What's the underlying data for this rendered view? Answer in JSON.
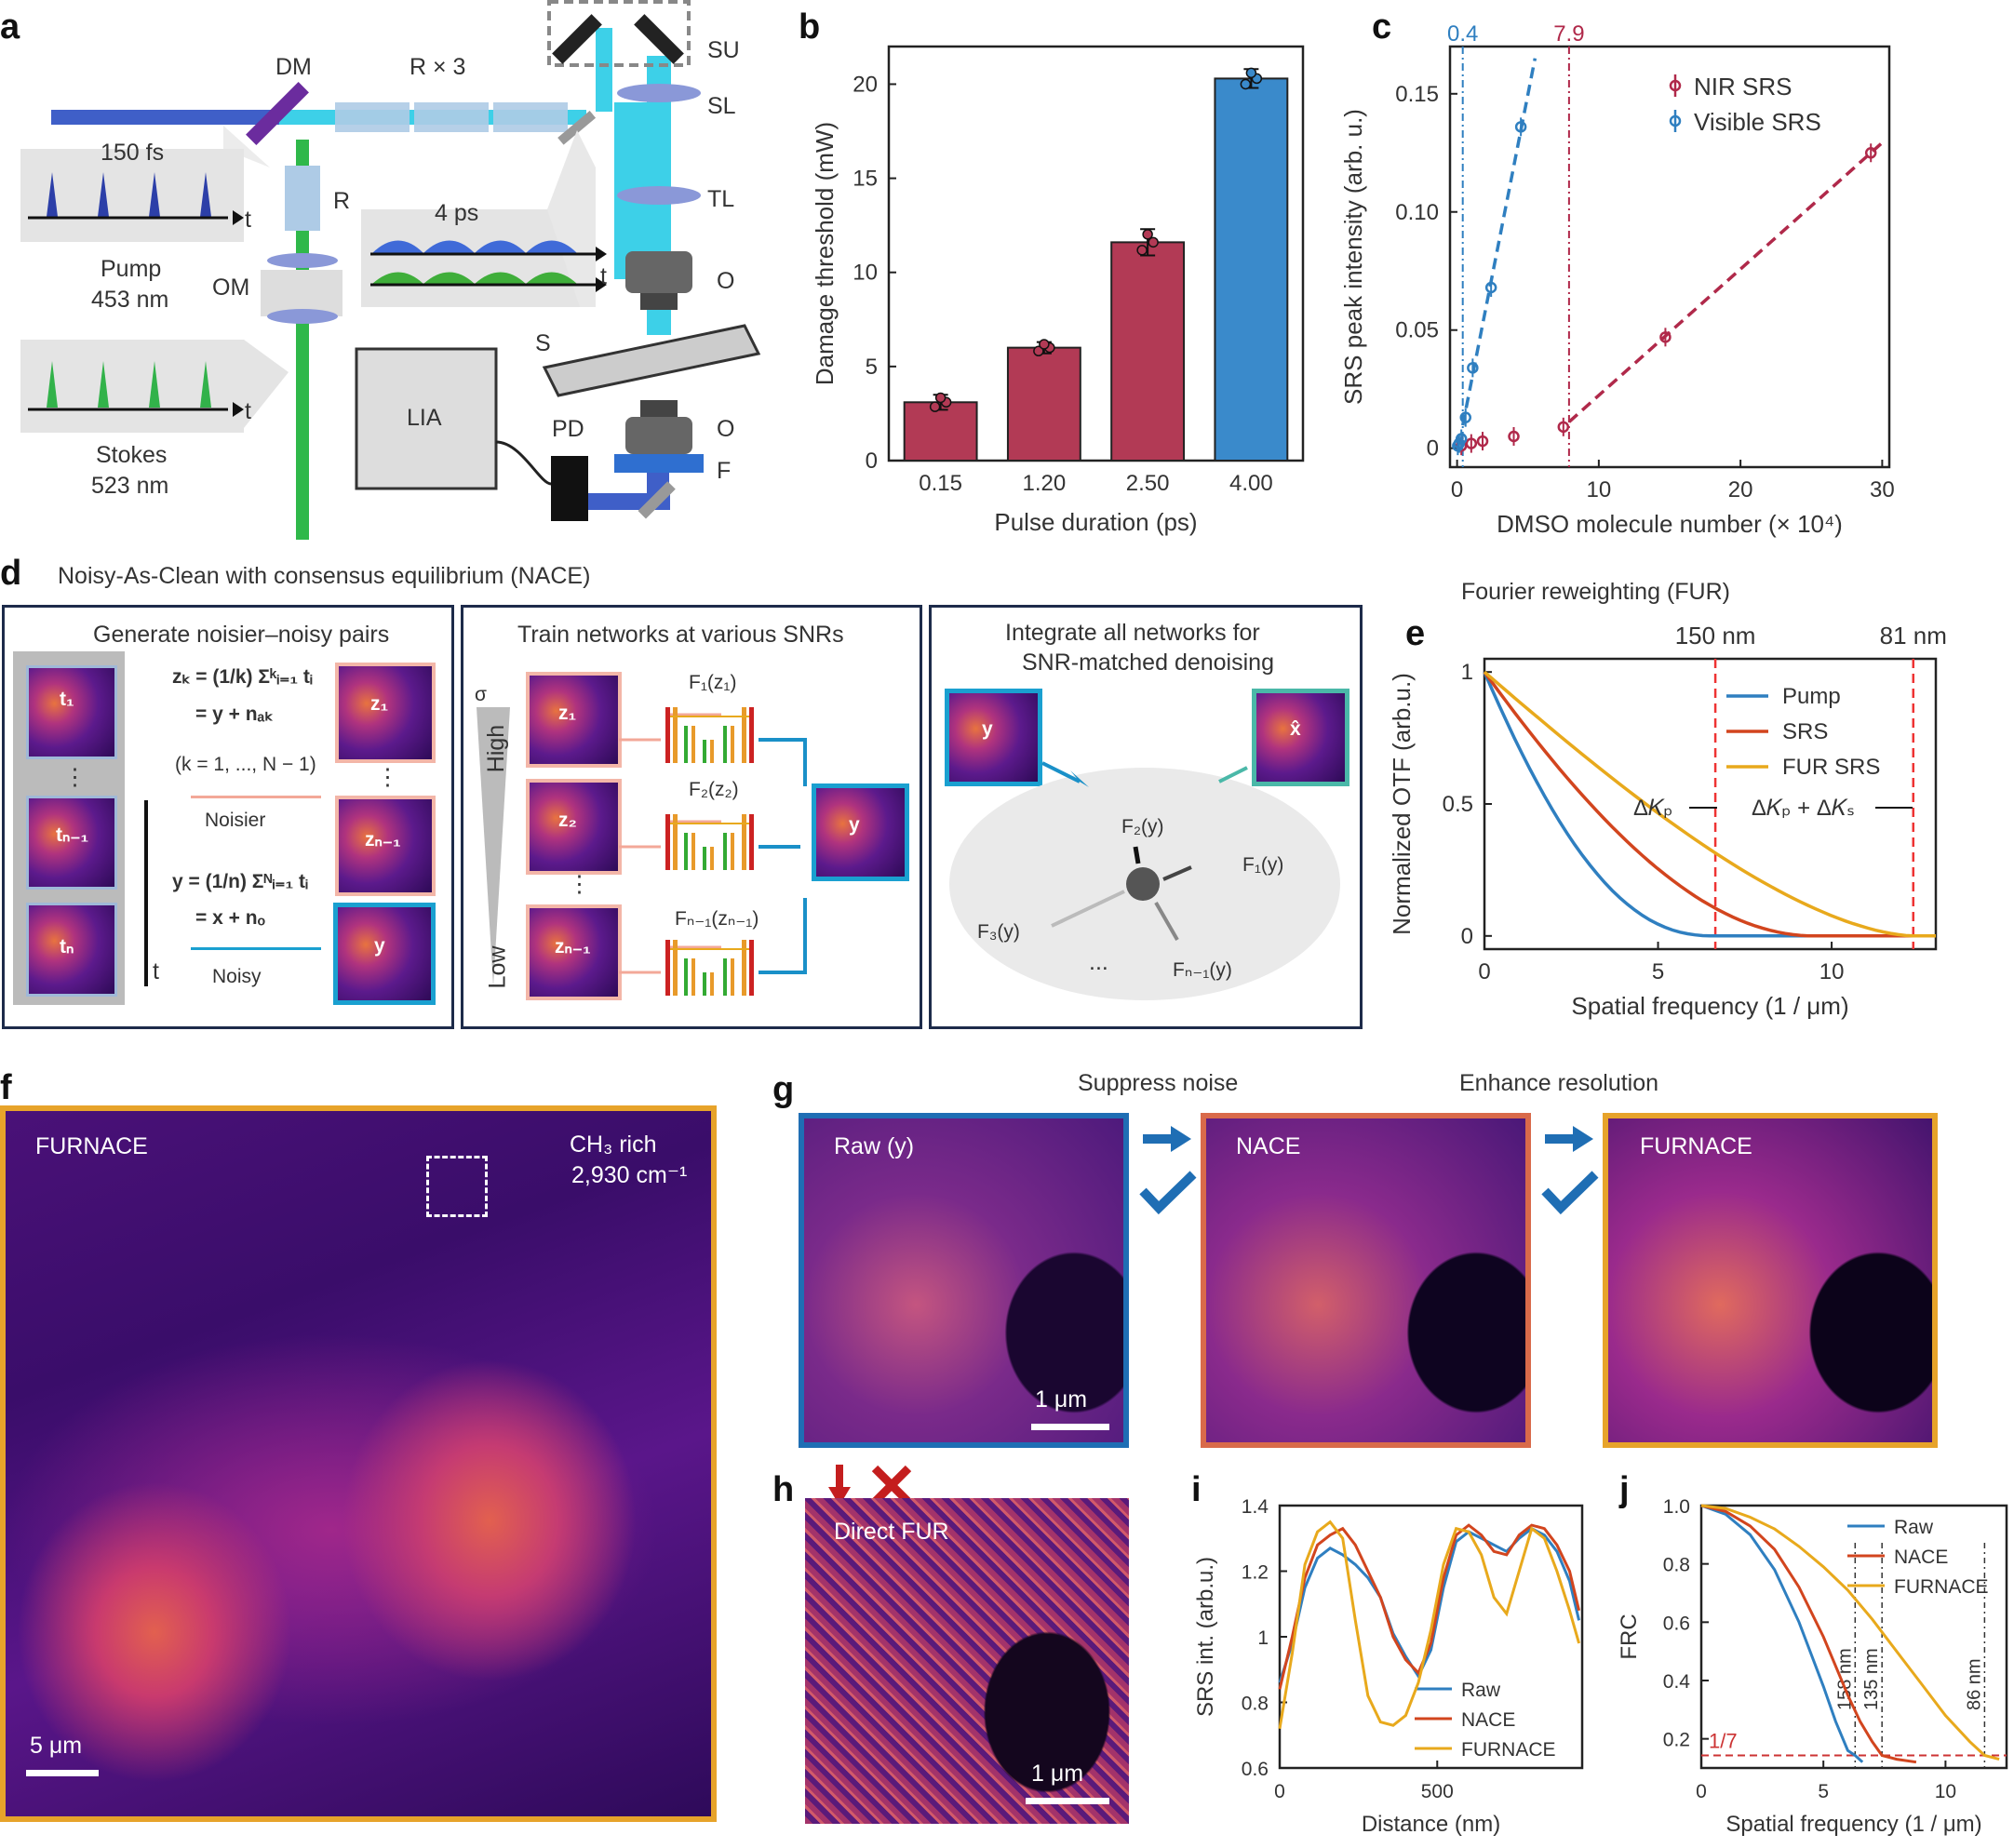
{
  "panels": {
    "a": {
      "label": "a",
      "texts": {
        "dm": "DM",
        "r3": "R × 3",
        "su": "SU",
        "sl": "SL",
        "tl": "TL",
        "o1": "O",
        "o2": "O",
        "s": "S",
        "f": "F",
        "pd": "PD",
        "lia": "LIA",
        "r": "R",
        "om": "OM",
        "fs": "150 fs",
        "ps": "4 ps",
        "t1": "t",
        "t2": "t",
        "t3": "t",
        "pump": "Pump",
        "pump_nm": "453 nm",
        "stokes": "Stokes",
        "stokes_nm": "523 nm"
      }
    },
    "b": {
      "label": "b"
    },
    "c": {
      "label": "c"
    },
    "d": {
      "label": "d",
      "title": "Noisy-As-Clean with consensus equilibrium (NACE)",
      "box1_title": "Generate noisier–noisy pairs",
      "box2_title": "Train networks at various SNRs",
      "box3_title_1": "Integrate all networks for",
      "box3_title_2": "SNR-matched denoising",
      "noisier": "Noisier",
      "noisy": "Noisy",
      "k_range": "(k = 1, ..., N − 1)",
      "eq_zk": "z",
      "high": "High",
      "low": "Low",
      "sigma": "σ",
      "t": "t",
      "dots": "⋮",
      "f1": "F₁(z₁)",
      "f2": "F₂(z₂)",
      "fn": "Fₙ₋₁(zₙ₋₁)",
      "g_f2": "F₂(y)",
      "g_f1": "F₁(y)",
      "g_f3": "F₃(y)",
      "g_fn": "Fₙ₋₁(y)",
      "hdots": "...",
      "y": "y",
      "xhat": "x̂",
      "z1": "z₁",
      "z2": "z₂",
      "zn": "zₙ₋₁",
      "t1": "t₁",
      "tn1": "tₙ₋₁",
      "tn": "tₙ",
      "eq1a": "zₖ = (1/k) Σᵏᵢ₌₁ tᵢ",
      "eq1b": "= y + nₐₖ",
      "eq2a": "y = (1/n) Σᴺᵢ₌₁ tᵢ",
      "eq2b": "= x + nₒ"
    },
    "e": {
      "label": "e",
      "title": "Fourier reweighting (FUR)"
    },
    "f": {
      "label": "f",
      "name": "FURNACE",
      "band": "CH₃ rich",
      "wn": "2,930 cm⁻¹",
      "scale": "5 μm"
    },
    "g": {
      "label": "g",
      "suppress": "Suppress noise",
      "enhance": "Enhance resolution",
      "raw": "Raw (y)",
      "nace": "NACE",
      "furnace": "FURNACE",
      "scale": "1 μm"
    },
    "h": {
      "label": "h",
      "name": "Direct FUR",
      "scale": "1 μm"
    },
    "i": {
      "label": "i"
    },
    "j": {
      "label": "j"
    }
  },
  "chart_data": [
    {
      "id": "b",
      "type": "bar",
      "xlabel": "Pulse duration (ps)",
      "ylabel": "Damage threshold (mW)",
      "categories": [
        "0.15",
        "1.20",
        "2.50",
        "4.00"
      ],
      "values": [
        3.1,
        6.0,
        11.6,
        20.3
      ],
      "errors": [
        0.4,
        0.3,
        0.7,
        0.5
      ],
      "colors": [
        "#b23a55",
        "#b23a55",
        "#b23a55",
        "#3a8acb"
      ],
      "ylim": [
        0,
        22
      ],
      "yticks": [
        0,
        5,
        10,
        15,
        20
      ]
    },
    {
      "id": "c",
      "type": "scatter",
      "xlabel": "DMSO molecule number (× 10⁴)",
      "ylabel": "SRS peak intensity (arb. u.)",
      "xlim": [
        -0.5,
        30.5
      ],
      "ylim": [
        -0.008,
        0.17
      ],
      "xticks": [
        0,
        10,
        20,
        30
      ],
      "yticks": [
        0,
        0.05,
        0.1,
        0.15
      ],
      "ytick_labels": [
        "0",
        "0.05",
        "0.10",
        "0.15"
      ],
      "vlines": [
        {
          "x": 0.4,
          "label": "0.4",
          "color": "#2f7fc0"
        },
        {
          "x": 7.9,
          "label": "7.9",
          "color": "#b0294a"
        }
      ],
      "series": [
        {
          "name": "NIR SRS",
          "color": "#b0294a",
          "x": [
            0.3,
            1.0,
            1.8,
            4.0,
            7.5,
            14.7,
            29.2
          ],
          "y": [
            0.001,
            0.002,
            0.003,
            0.005,
            0.009,
            0.047,
            0.125
          ]
        },
        {
          "name": "Visible SRS",
          "color": "#2f7fc0",
          "x": [
            0.05,
            0.15,
            0.3,
            0.6,
            1.1,
            2.4,
            4.5
          ],
          "y": [
            0.001,
            0.002,
            0.004,
            0.013,
            0.034,
            0.068,
            0.136
          ]
        }
      ]
    },
    {
      "id": "e",
      "type": "line",
      "xlabel": "Spatial frequency (1 / μm)",
      "ylabel": "Normalized OTF (arb.u.)",
      "xlim": [
        0,
        13
      ],
      "ylim": [
        -0.05,
        1.05
      ],
      "xticks": [
        0,
        5,
        10
      ],
      "yticks": [
        0,
        0.5,
        1
      ],
      "vlines": [
        {
          "x": 6.65,
          "label": "150 nm",
          "annot": "ΔK_P"
        },
        {
          "x": 12.35,
          "label": "81 nm",
          "annot": "ΔK_P + ΔK_S"
        }
      ],
      "annot_p": "Δ𝐾ₚ",
      "annot_ps": "Δ𝐾ₚ + Δ𝐾ₛ",
      "series": [
        {
          "name": "Pump",
          "color": "#2f7fc0",
          "cutoff": 6.65
        },
        {
          "name": "SRS",
          "color": "#d2451e",
          "cutoff": 9.5
        },
        {
          "name": "FUR SRS",
          "color": "#e8a91c",
          "cutoff": 12.35
        }
      ]
    },
    {
      "id": "i",
      "type": "line",
      "xlabel": "Distance (nm)",
      "ylabel": "SRS int. (arb.u.)",
      "xlim": [
        0,
        960
      ],
      "ylim": [
        0.6,
        1.4
      ],
      "xticks": [
        0,
        500
      ],
      "yticks": [
        0.6,
        0.8,
        1,
        1.2,
        1.4
      ],
      "ytick_labels": [
        "0.6",
        "0.8",
        "1",
        "1.2",
        "1.4"
      ],
      "series": [
        {
          "name": "Raw",
          "color": "#2f7fc0",
          "x": [
            0,
            40,
            80,
            120,
            160,
            200,
            240,
            280,
            320,
            360,
            400,
            440,
            480,
            520,
            560,
            600,
            640,
            680,
            720,
            760,
            800,
            840,
            880,
            920,
            950
          ],
          "y": [
            0.86,
            0.98,
            1.15,
            1.24,
            1.27,
            1.25,
            1.22,
            1.18,
            1.12,
            1.01,
            0.94,
            0.88,
            0.96,
            1.15,
            1.29,
            1.32,
            1.3,
            1.28,
            1.26,
            1.3,
            1.33,
            1.31,
            1.26,
            1.17,
            1.05
          ]
        },
        {
          "name": "NACE",
          "color": "#d2451e",
          "x": [
            0,
            40,
            80,
            120,
            160,
            200,
            240,
            280,
            320,
            360,
            400,
            440,
            480,
            520,
            560,
            600,
            640,
            680,
            720,
            760,
            800,
            840,
            880,
            920,
            950
          ],
          "y": [
            0.84,
            1.0,
            1.18,
            1.28,
            1.31,
            1.33,
            1.28,
            1.2,
            1.12,
            1.0,
            0.93,
            0.89,
            0.98,
            1.18,
            1.31,
            1.34,
            1.31,
            1.26,
            1.25,
            1.31,
            1.34,
            1.33,
            1.28,
            1.2,
            1.08
          ]
        },
        {
          "name": "FURNACE",
          "color": "#e8a91c",
          "x": [
            0,
            40,
            80,
            120,
            160,
            200,
            240,
            280,
            320,
            360,
            400,
            440,
            480,
            520,
            560,
            600,
            640,
            680,
            720,
            760,
            800,
            840,
            880,
            920,
            950
          ],
          "y": [
            0.72,
            0.95,
            1.22,
            1.32,
            1.35,
            1.3,
            1.05,
            0.82,
            0.74,
            0.73,
            0.76,
            0.86,
            1.02,
            1.22,
            1.33,
            1.32,
            1.25,
            1.12,
            1.07,
            1.2,
            1.33,
            1.3,
            1.2,
            1.08,
            0.98
          ]
        }
      ]
    },
    {
      "id": "j",
      "type": "line",
      "xlabel": "Spatial frequency  (1 / μm)",
      "ylabel": "FRC",
      "xlim": [
        0,
        12.5
      ],
      "ylim": [
        0.1,
        1.0
      ],
      "xticks": [
        0,
        5,
        10
      ],
      "yticks": [
        0.2,
        0.4,
        0.6,
        0.8,
        1.0
      ],
      "ytick_labels": [
        "0.2",
        "0.4",
        "0.6",
        "0.8",
        "1.0"
      ],
      "hline": {
        "y": 0.143,
        "label": "1/7"
      },
      "vlines": [
        {
          "x": 6.3,
          "label": "158 nm"
        },
        {
          "x": 7.4,
          "label": "135 nm"
        },
        {
          "x": 11.6,
          "label": "86 nm"
        }
      ],
      "series": [
        {
          "name": "Raw",
          "color": "#2f7fc0",
          "x": [
            0,
            1,
            2,
            3,
            4,
            5,
            5.5,
            6,
            6.3,
            6.6
          ],
          "y": [
            1.0,
            0.97,
            0.9,
            0.78,
            0.6,
            0.38,
            0.26,
            0.16,
            0.143,
            0.12
          ]
        },
        {
          "name": "NACE",
          "color": "#d2451e",
          "x": [
            0,
            1,
            2,
            3,
            4,
            5,
            6,
            6.5,
            7,
            7.4,
            8,
            8.8
          ],
          "y": [
            1.0,
            0.98,
            0.93,
            0.85,
            0.72,
            0.55,
            0.35,
            0.26,
            0.19,
            0.143,
            0.13,
            0.12
          ]
        },
        {
          "name": "FURNACE",
          "color": "#e8a91c",
          "x": [
            0,
            1,
            2,
            3,
            4,
            5,
            6,
            7,
            8,
            9,
            10,
            11,
            11.6,
            12.2
          ],
          "y": [
            1.0,
            0.99,
            0.96,
            0.92,
            0.86,
            0.79,
            0.71,
            0.61,
            0.5,
            0.39,
            0.28,
            0.19,
            0.143,
            0.13
          ]
        }
      ]
    }
  ]
}
